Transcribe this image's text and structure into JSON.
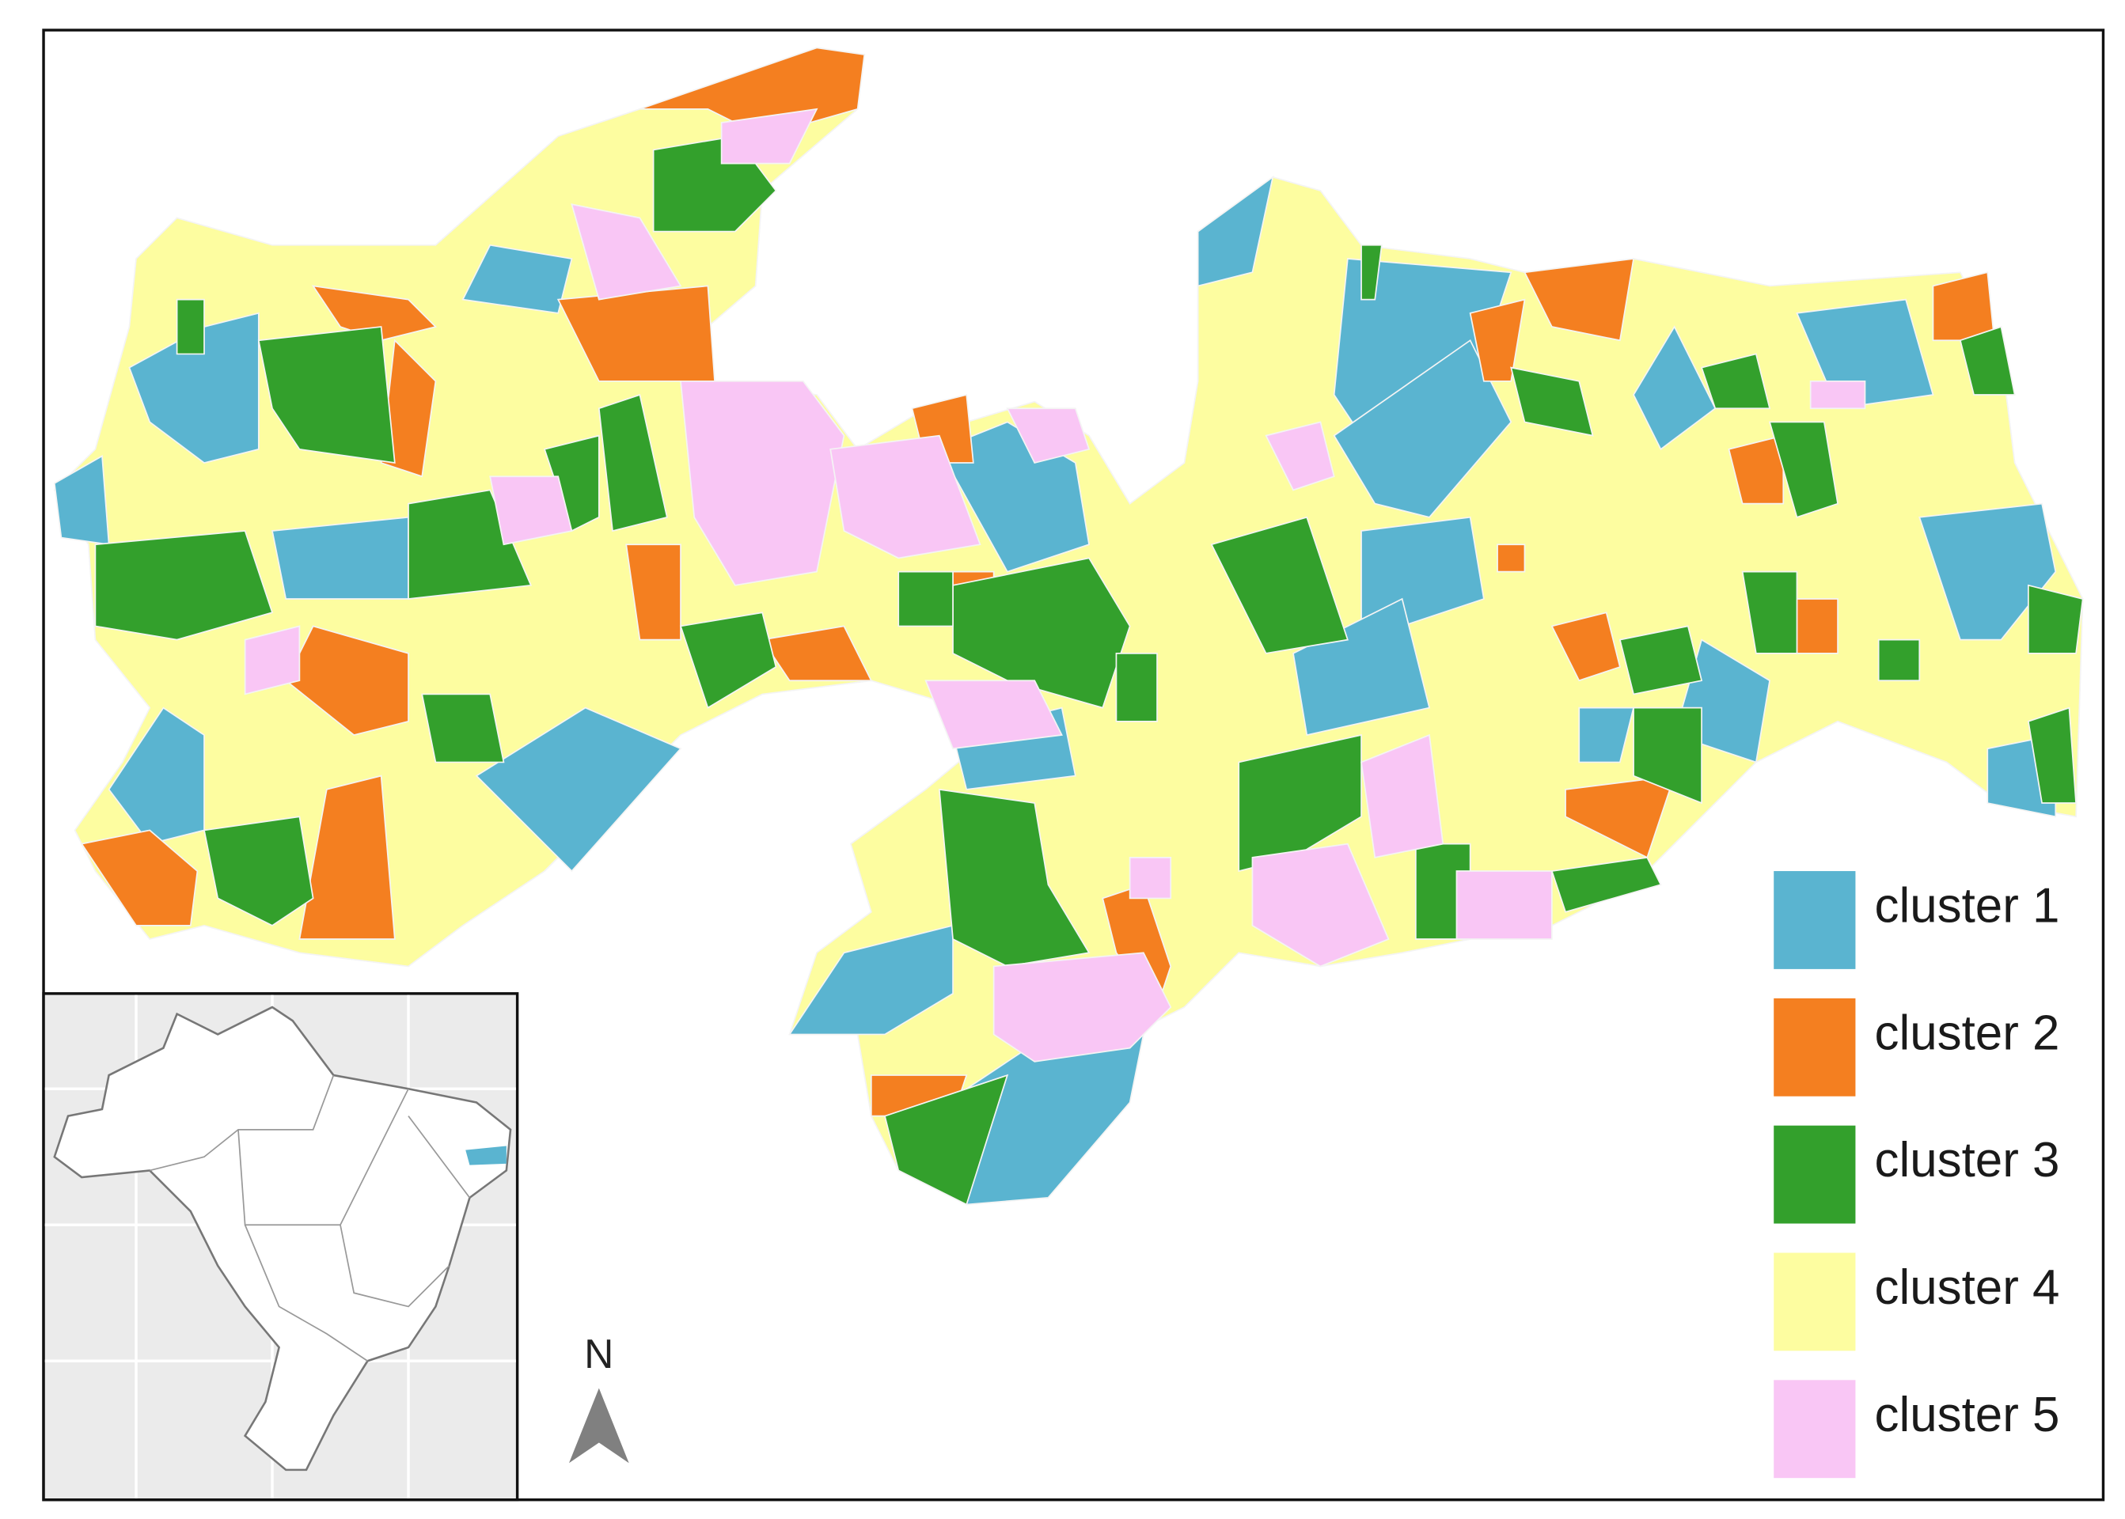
{
  "legend": {
    "items": [
      {
        "label": "cluster 1",
        "color": "#5ab4d0"
      },
      {
        "label": "cluster 2",
        "color": "#f47f20"
      },
      {
        "label": "cluster 3",
        "color": "#33a02c"
      },
      {
        "label": "cluster 4",
        "color": "#fdfda0"
      },
      {
        "label": "cluster 5",
        "color": "#f9c6f5"
      }
    ]
  },
  "north_arrow": {
    "label": "N"
  }
}
